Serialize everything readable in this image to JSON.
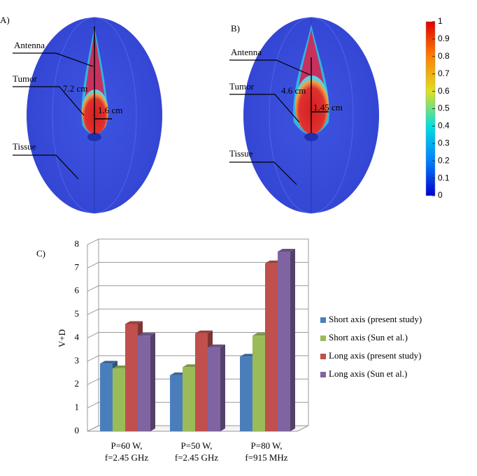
{
  "panel_a": {
    "label": "A)",
    "antenna": "Antenna",
    "tumor": "Tumor",
    "tissue": "Tissue",
    "long_axis": "7.2 cm",
    "short_axis": "1.6 cm"
  },
  "panel_b": {
    "label": "B)",
    "antenna": "Antenna",
    "tumor": "Tumor",
    "tissue": "Tissue",
    "long_axis": "4.6 cm",
    "short_axis": "1.45 cm"
  },
  "colorbar": {
    "ticks": [
      0,
      0.1,
      0.2,
      0.3,
      0.4,
      0.5,
      0.6,
      0.7,
      0.8,
      0.9,
      1
    ]
  },
  "chart_data": {
    "type": "bar3d",
    "label": "C)",
    "ylabel": "V+D",
    "categories": [
      [
        "P=60 W,",
        "f=2.45 GHz"
      ],
      [
        "P=50 W,",
        "f=2.45 GHz"
      ],
      [
        "P=80 W,",
        "f=915 MHz"
      ]
    ],
    "series": [
      {
        "name": "Short axis (present study)",
        "color": "#4a7ebb",
        "values": [
          2.9,
          2.4,
          3.2
        ]
      },
      {
        "name": "Short axis (Sun et al.)",
        "color": "#9bbb59",
        "values": [
          2.7,
          2.75,
          4.1
        ]
      },
      {
        "name": "Long axis (present study)",
        "color": "#c0504d",
        "values": [
          4.6,
          4.2,
          7.2
        ]
      },
      {
        "name": "Long axis (Sun et al.)",
        "color": "#8064a2",
        "values": [
          4.1,
          3.6,
          7.7
        ]
      }
    ],
    "ylim": [
      0,
      8
    ],
    "yticks": [
      0,
      1,
      2,
      3,
      4,
      5,
      6,
      7,
      8
    ],
    "grid": true,
    "legend": "right"
  }
}
